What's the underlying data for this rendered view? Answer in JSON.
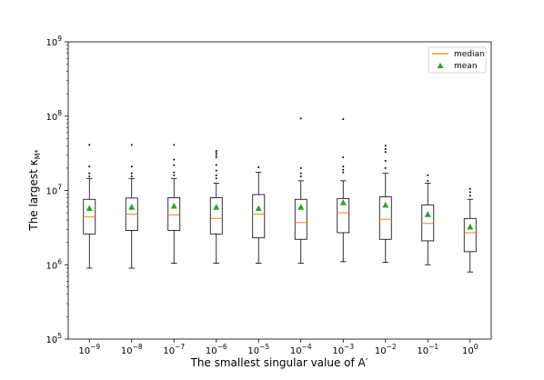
{
  "chart_data": {
    "type": "box",
    "xlabel": "The smallest singular value of A′",
    "ylabel": "The largest κ",
    "ylabel_subscript": "M*",
    "yscale": "log",
    "ylim": [
      100000,
      1000000000
    ],
    "y_ticks": [
      {
        "base": "10",
        "exp": "5",
        "value": 100000
      },
      {
        "base": "10",
        "exp": "6",
        "value": 1000000
      },
      {
        "base": "10",
        "exp": "7",
        "value": 10000000
      },
      {
        "base": "10",
        "exp": "8",
        "value": 100000000
      },
      {
        "base": "10",
        "exp": "9",
        "value": 1000000000
      }
    ],
    "categories": [
      {
        "base": "10",
        "exp": "−9"
      },
      {
        "base": "10",
        "exp": "−8"
      },
      {
        "base": "10",
        "exp": "−7"
      },
      {
        "base": "10",
        "exp": "−6"
      },
      {
        "base": "10",
        "exp": "−5"
      },
      {
        "base": "10",
        "exp": "−4"
      },
      {
        "base": "10",
        "exp": "−3"
      },
      {
        "base": "10",
        "exp": "−2"
      },
      {
        "base": "10",
        "exp": "−1"
      },
      {
        "base": "10",
        "exp": "0"
      }
    ],
    "boxes": [
      {
        "whislo": 900000,
        "q1": 2600000,
        "med": 4400000,
        "q3": 7600000,
        "whishi": 14500000,
        "mean": 5700000,
        "fliers": [
          15500000,
          17000000,
          21000000,
          41000000
        ]
      },
      {
        "whislo": 900000,
        "q1": 2900000,
        "med": 4800000,
        "q3": 7900000,
        "whishi": 14500000,
        "mean": 5900000,
        "fliers": [
          15500000,
          17000000,
          21000000,
          41000000
        ]
      },
      {
        "whislo": 1050000,
        "q1": 2900000,
        "med": 4700000,
        "q3": 8000000,
        "whishi": 14500000,
        "mean": 6100000,
        "fliers": [
          16000000,
          17500000,
          22000000,
          26000000,
          41000000
        ]
      },
      {
        "whislo": 1050000,
        "q1": 2600000,
        "med": 4200000,
        "q3": 8000000,
        "whishi": 12500000,
        "mean": 5900000,
        "fliers": [
          14500000,
          16000000,
          18500000,
          22000000,
          28000000,
          30000000,
          32000000,
          34000000
        ]
      },
      {
        "whislo": 1050000,
        "q1": 2300000,
        "med": 4800000,
        "q3": 8800000,
        "whishi": 17500000,
        "mean": 5700000,
        "fliers": [
          20500000
        ]
      },
      {
        "whislo": 1050000,
        "q1": 2200000,
        "med": 3700000,
        "q3": 7600000,
        "whishi": 13500000,
        "mean": 5900000,
        "fliers": [
          15500000,
          17000000,
          20000000,
          93000000
        ]
      },
      {
        "whislo": 1100000,
        "q1": 2700000,
        "med": 5000000,
        "q3": 7800000,
        "whishi": 13500000,
        "mean": 6800000,
        "fliers": [
          17500000,
          19000000,
          21000000,
          28000000,
          91000000
        ]
      },
      {
        "whislo": 1080000,
        "q1": 2200000,
        "med": 4100000,
        "q3": 8200000,
        "whishi": 17000000,
        "mean": 6300000,
        "fliers": [
          20000000,
          25000000,
          33000000,
          36000000,
          40000000
        ]
      },
      {
        "whislo": 1000000,
        "q1": 2100000,
        "med": 3600000,
        "q3": 6400000,
        "whishi": 12500000,
        "mean": 4700000,
        "fliers": [
          13500000,
          16000000
        ]
      },
      {
        "whislo": 800000,
        "q1": 1500000,
        "med": 2700000,
        "q3": 4200000,
        "whishi": 7600000,
        "mean": 3200000,
        "fliers": [
          8500000,
          9500000,
          10500000
        ]
      }
    ],
    "legend": {
      "placement": "top-right",
      "entries": [
        {
          "label": "median",
          "marker": "line"
        },
        {
          "label": "mean",
          "marker": "triangle"
        }
      ]
    },
    "colors": {
      "median": "#ff7f0e",
      "mean": "#2ca02c",
      "box": "#000000"
    },
    "grid": false
  }
}
